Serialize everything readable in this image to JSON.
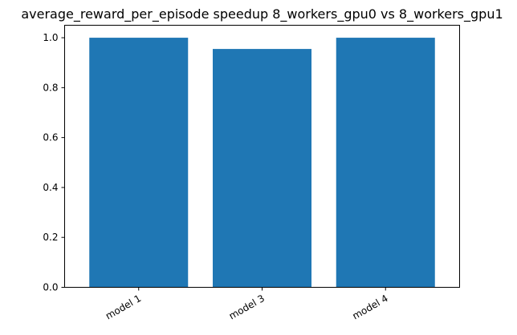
{
  "chart_data": {
    "type": "bar",
    "title": "average_reward_per_episode speedup 8_workers_gpu0 vs 8_workers_gpu1",
    "xlabel": "",
    "ylabel": "",
    "categories": [
      "model 1",
      "model 3",
      "model 4"
    ],
    "values": [
      1.0,
      0.955,
      1.0
    ],
    "ylim": [
      0,
      1.05
    ],
    "yticks": [
      0.0,
      0.2,
      0.4,
      0.6,
      0.8,
      1.0
    ],
    "ytick_labels": [
      "0.0",
      "0.2",
      "0.4",
      "0.6",
      "0.8",
      "1.0"
    ],
    "bar_color": "#1f77b4",
    "grid": false,
    "legend": "none"
  }
}
